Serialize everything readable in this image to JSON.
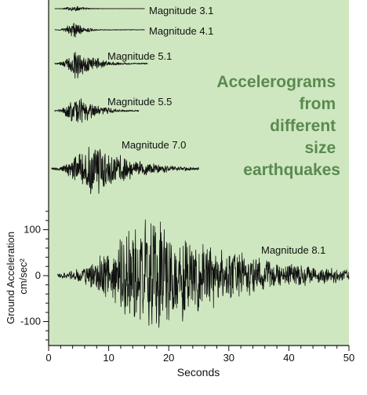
{
  "figure": {
    "background_color": "#cfe7c0",
    "trace_color": "#111111",
    "title_color": "#5a8a4f"
  },
  "chart_data": {
    "type": "line",
    "title_lines": [
      "Accelerograms",
      "from",
      "different",
      "size",
      "earthquakes"
    ],
    "xlabel": "Seconds",
    "ylabel_lines": [
      "Ground Acceleration",
      "cm/sec²"
    ],
    "xlim": [
      0,
      50
    ],
    "xticks": [
      0,
      10,
      20,
      30,
      40,
      50
    ],
    "ylim": [
      -150,
      150
    ],
    "yticks": [
      -100,
      0,
      100
    ],
    "grid": false,
    "series": [
      {
        "name": "Magnitude 3.1",
        "x_range": [
          1,
          16
        ],
        "peak_time": 4.5,
        "peak_amplitude": 4
      },
      {
        "name": "Magnitude 4.1",
        "x_range": [
          1,
          16
        ],
        "peak_time": 4.5,
        "peak_amplitude": 12
      },
      {
        "name": "Magnitude 5.1",
        "x_range": [
          1,
          16.5
        ],
        "peak_time": 5,
        "peak_amplitude": 22
      },
      {
        "name": "Magnitude 5.5",
        "x_range": [
          1,
          15
        ],
        "peak_time": 5,
        "peak_amplitude": 25
      },
      {
        "name": "Magnitude 7.0",
        "x_range": [
          0.5,
          25
        ],
        "peak_time": 7.5,
        "peak_amplitude": 40
      },
      {
        "name": "Magnitude 8.1",
        "x_range": [
          1.5,
          50
        ],
        "peak_time": 18,
        "peak_amplitude": 140
      }
    ]
  }
}
